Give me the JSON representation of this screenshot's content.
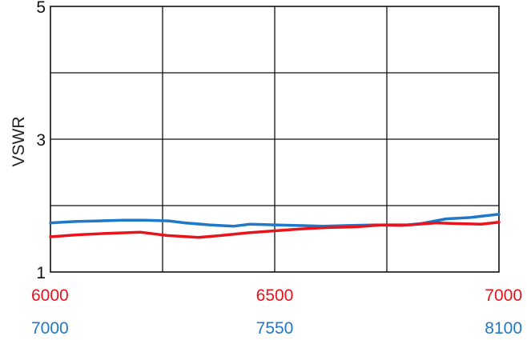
{
  "chart_data": {
    "type": "line",
    "title": "",
    "xlabel": "",
    "ylabel": "VSWR",
    "ylim": [
      1,
      5
    ],
    "y_ticks": [
      "5",
      "3",
      "1"
    ],
    "grid": true,
    "x_axes": [
      {
        "color": "#e8141b",
        "ticks": [
          "6000",
          "6500",
          "7000"
        ],
        "range": [
          6000,
          7000
        ]
      },
      {
        "color": "#1f78c8",
        "ticks": [
          "7000",
          "7550",
          "8100"
        ],
        "range": [
          7000,
          8100
        ]
      }
    ],
    "series": [
      {
        "color": "#1f78c8",
        "axis": 1,
        "x": [
          7000,
          7060,
          7120,
          7180,
          7230,
          7290,
          7330,
          7390,
          7450,
          7490,
          7550,
          7610,
          7670,
          7730,
          7800,
          7860,
          7910,
          7970,
          8030,
          8100
        ],
        "y": [
          1.74,
          1.76,
          1.77,
          1.78,
          1.78,
          1.77,
          1.74,
          1.71,
          1.69,
          1.72,
          1.71,
          1.7,
          1.69,
          1.7,
          1.71,
          1.7,
          1.73,
          1.8,
          1.82,
          1.87
        ]
      },
      {
        "color": "#e8141b",
        "axis": 0,
        "x": [
          6000,
          6060,
          6120,
          6200,
          6260,
          6330,
          6380,
          6440,
          6500,
          6560,
          6620,
          6680,
          6740,
          6800,
          6860,
          6900,
          6960,
          7000
        ],
        "y": [
          1.53,
          1.56,
          1.58,
          1.6,
          1.55,
          1.52,
          1.55,
          1.59,
          1.62,
          1.65,
          1.67,
          1.68,
          1.71,
          1.71,
          1.74,
          1.73,
          1.72,
          1.75
        ]
      }
    ]
  }
}
